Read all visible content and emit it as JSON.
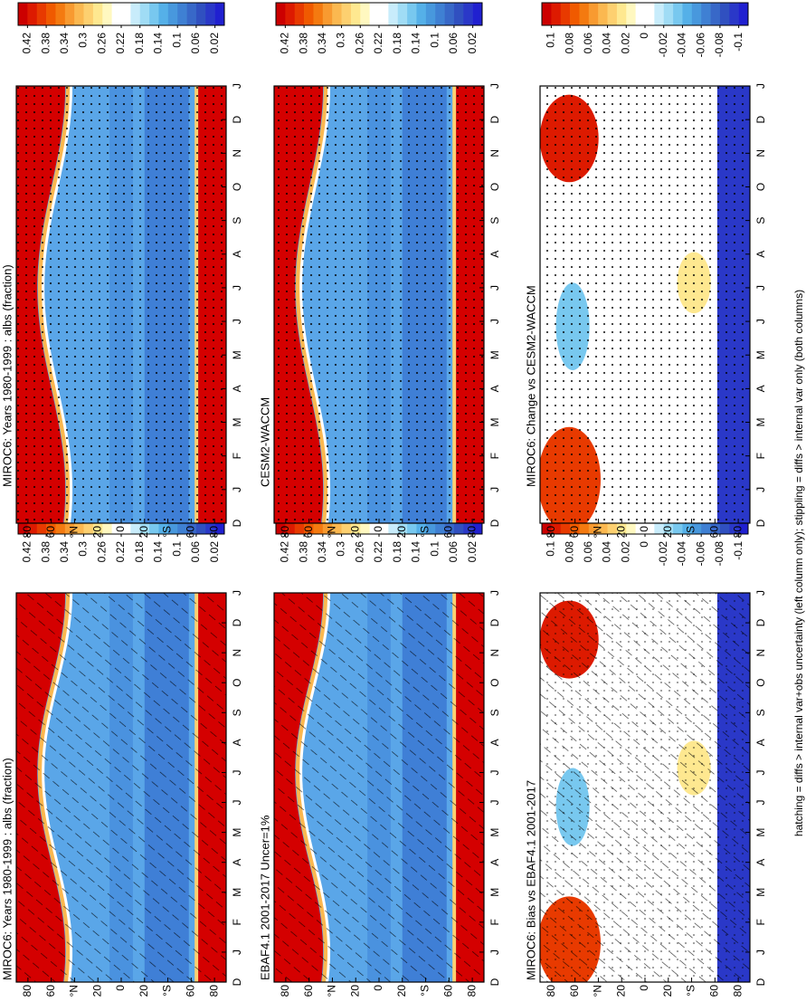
{
  "chart_data": [
    {
      "type": "contour",
      "title": "MIROC6: Years 1980-1999 : albs (fraction)",
      "hatching": true,
      "stippling": false,
      "categories": [
        "D",
        "J",
        "F",
        "M",
        "A",
        "M",
        "J",
        "J",
        "A",
        "S",
        "O",
        "N",
        "D",
        "J"
      ],
      "ylim": [
        -90,
        90
      ],
      "yticks": [
        {
          "value": 80,
          "label": "80"
        },
        {
          "value": 60,
          "label": "60"
        },
        {
          "value": 40,
          "label": "°N"
        },
        {
          "value": 20,
          "label": "20"
        },
        0,
        {
          "value": -20,
          "label": "20"
        },
        {
          "value": -40,
          "label": "°S"
        },
        {
          "value": -60,
          "label": "60"
        },
        {
          "value": -80,
          "label": "80"
        }
      ],
      "colorbar": {
        "lim": [
          0.44,
          0
        ],
        "ticks": [
          0.42,
          0.38,
          0.34,
          0.3,
          0.26,
          0.22,
          0.18,
          0.14,
          0.1,
          0.06,
          0.02
        ],
        "colors": [
          "#cc0000",
          "#dd1a00",
          "#e83a00",
          "#f05a00",
          "#f47a10",
          "#f89a30",
          "#fbb850",
          "#fdd070",
          "#fee890",
          "#fff8c0",
          "#ffffff",
          "#ffffff",
          "#c8ecfb",
          "#a0dcf5",
          "#78c8ef",
          "#55b0e8",
          "#4898dd",
          "#3f80d3",
          "#3868c8",
          "#3050c0",
          "#2a38c8",
          "#2020d0"
        ]
      }
    },
    {
      "type": "contour",
      "title": "MIROC6: Years 1980-1999 : albs (fraction)",
      "hatching": false,
      "stippling": true,
      "categories": [
        "D",
        "J",
        "F",
        "M",
        "A",
        "M",
        "J",
        "J",
        "A",
        "S",
        "O",
        "N",
        "D",
        "J"
      ],
      "ylim": [
        -90,
        90
      ],
      "yticks": [
        {
          "value": 80,
          "label": "80"
        },
        {
          "value": 60,
          "label": "60"
        },
        {
          "value": 40,
          "label": "°N"
        },
        {
          "value": 20,
          "label": "20"
        },
        0,
        {
          "value": -20,
          "label": "20"
        },
        {
          "value": -40,
          "label": "°S"
        },
        {
          "value": -60,
          "label": "60"
        },
        {
          "value": -80,
          "label": "80"
        }
      ],
      "colorbar": {
        "lim": [
          0.44,
          0
        ],
        "ticks": [
          0.42,
          0.38,
          0.34,
          0.3,
          0.26,
          0.22,
          0.18,
          0.14,
          0.1,
          0.06,
          0.02
        ],
        "colors": [
          "#cc0000",
          "#dd1a00",
          "#e83a00",
          "#f05a00",
          "#f47a10",
          "#f89a30",
          "#fbb850",
          "#fdd070",
          "#fee890",
          "#fff8c0",
          "#ffffff",
          "#ffffff",
          "#c8ecfb",
          "#a0dcf5",
          "#78c8ef",
          "#55b0e8",
          "#4898dd",
          "#3f80d3",
          "#3868c8",
          "#3050c0",
          "#2a38c8",
          "#2020d0"
        ]
      }
    },
    {
      "type": "contour",
      "title": "EBAF4.1 2001-2017 Uncer=1%",
      "hatching": true,
      "stippling": false,
      "categories": [
        "D",
        "J",
        "F",
        "M",
        "A",
        "M",
        "J",
        "J",
        "A",
        "S",
        "O",
        "N",
        "D",
        "J"
      ],
      "ylim": [
        -90,
        90
      ],
      "yticks": [
        {
          "value": 80,
          "label": "80"
        },
        {
          "value": 60,
          "label": "60"
        },
        {
          "value": 40,
          "label": "°N"
        },
        {
          "value": 20,
          "label": "20"
        },
        0,
        {
          "value": -20,
          "label": "20"
        },
        {
          "value": -40,
          "label": "°S"
        },
        {
          "value": -60,
          "label": "60"
        },
        {
          "value": -80,
          "label": "80"
        }
      ],
      "colorbar": {
        "lim": [
          0.44,
          0
        ],
        "ticks": [
          0.42,
          0.38,
          0.34,
          0.3,
          0.26,
          0.22,
          0.18,
          0.14,
          0.1,
          0.06,
          0.02
        ],
        "colors": [
          "#cc0000",
          "#dd1a00",
          "#e83a00",
          "#f05a00",
          "#f47a10",
          "#f89a30",
          "#fbb850",
          "#fdd070",
          "#fee890",
          "#fff8c0",
          "#ffffff",
          "#ffffff",
          "#c8ecfb",
          "#a0dcf5",
          "#78c8ef",
          "#55b0e8",
          "#4898dd",
          "#3f80d3",
          "#3868c8",
          "#3050c0",
          "#2a38c8",
          "#2020d0"
        ]
      }
    },
    {
      "type": "contour",
      "title": "CESM2-WACCM",
      "hatching": false,
      "stippling": true,
      "categories": [
        "D",
        "J",
        "F",
        "M",
        "A",
        "M",
        "J",
        "J",
        "A",
        "S",
        "O",
        "N",
        "D",
        "J"
      ],
      "ylim": [
        -90,
        90
      ],
      "yticks": [
        {
          "value": 80,
          "label": "80"
        },
        {
          "value": 60,
          "label": "60"
        },
        {
          "value": 40,
          "label": "°N"
        },
        {
          "value": 20,
          "label": "20"
        },
        0,
        {
          "value": -20,
          "label": "20"
        },
        {
          "value": -40,
          "label": "°S"
        },
        {
          "value": -60,
          "label": "60"
        },
        {
          "value": -80,
          "label": "80"
        }
      ],
      "colorbar": {
        "lim": [
          0.44,
          0
        ],
        "ticks": [
          0.42,
          0.38,
          0.34,
          0.3,
          0.26,
          0.22,
          0.18,
          0.14,
          0.1,
          0.06,
          0.02
        ],
        "colors": [
          "#cc0000",
          "#dd1a00",
          "#e83a00",
          "#f05a00",
          "#f47a10",
          "#f89a30",
          "#fbb850",
          "#fdd070",
          "#fee890",
          "#fff8c0",
          "#ffffff",
          "#ffffff",
          "#c8ecfb",
          "#a0dcf5",
          "#78c8ef",
          "#55b0e8",
          "#4898dd",
          "#3f80d3",
          "#3868c8",
          "#3050c0",
          "#2a38c8",
          "#2020d0"
        ]
      }
    },
    {
      "type": "contour",
      "title": "MIROC6: Bias vs EBAF4.1 2001-2017",
      "hatching": true,
      "stippling": true,
      "categories": [
        "D",
        "J",
        "F",
        "M",
        "A",
        "M",
        "J",
        "J",
        "A",
        "S",
        "O",
        "N",
        "D",
        "J"
      ],
      "ylim": [
        -90,
        90
      ],
      "yticks": [
        {
          "value": 80,
          "label": "80"
        },
        {
          "value": 60,
          "label": "60"
        },
        {
          "value": 40,
          "label": "°N"
        },
        {
          "value": 20,
          "label": "20"
        },
        0,
        {
          "value": -20,
          "label": "20"
        },
        {
          "value": -40,
          "label": "°S"
        },
        {
          "value": -60,
          "label": "60"
        },
        {
          "value": -80,
          "label": "80"
        }
      ],
      "colorbar": {
        "lim": [
          0.11,
          -0.11
        ],
        "ticks": [
          0.1,
          0.08,
          0.06,
          0.04,
          0.02,
          0,
          -0.02,
          -0.04,
          -0.06,
          -0.08,
          -0.1
        ],
        "colors": [
          "#cc0000",
          "#dd1a00",
          "#e83a00",
          "#f05a00",
          "#f47a10",
          "#f89a30",
          "#fbb850",
          "#fdd070",
          "#fee890",
          "#fff8c0",
          "#ffffff",
          "#ffffff",
          "#c8ecfb",
          "#a0dcf5",
          "#78c8ef",
          "#55b0e8",
          "#4898dd",
          "#3f80d3",
          "#3868c8",
          "#3050c0",
          "#2a38c8",
          "#2020d0"
        ]
      }
    },
    {
      "type": "contour",
      "title": "MIROC6: Change vs CESM2-WACCM",
      "hatching": false,
      "stippling": true,
      "categories": [
        "D",
        "J",
        "F",
        "M",
        "A",
        "M",
        "J",
        "J",
        "A",
        "S",
        "O",
        "N",
        "D",
        "J"
      ],
      "ylim": [
        -90,
        90
      ],
      "yticks": [
        {
          "value": 80,
          "label": "80"
        },
        {
          "value": 60,
          "label": "60"
        },
        {
          "value": 40,
          "label": "°N"
        },
        {
          "value": 20,
          "label": "20"
        },
        0,
        {
          "value": -20,
          "label": "20"
        },
        {
          "value": -40,
          "label": "°S"
        },
        {
          "value": -60,
          "label": "60"
        },
        {
          "value": -80,
          "label": "80"
        }
      ],
      "colorbar": {
        "lim": [
          0.11,
          -0.11
        ],
        "ticks": [
          0.1,
          0.08,
          0.06,
          0.04,
          0.02,
          0,
          -0.02,
          -0.04,
          -0.06,
          -0.08,
          -0.1
        ],
        "colors": [
          "#cc0000",
          "#dd1a00",
          "#e83a00",
          "#f05a00",
          "#f47a10",
          "#f89a30",
          "#fbb850",
          "#fdd070",
          "#fee890",
          "#fff8c0",
          "#ffffff",
          "#ffffff",
          "#c8ecfb",
          "#a0dcf5",
          "#78c8ef",
          "#55b0e8",
          "#4898dd",
          "#3f80d3",
          "#3868c8",
          "#3050c0",
          "#2a38c8",
          "#2020d0"
        ]
      }
    }
  ],
  "footer": "hatching = diffs > internal var+obs uncertainty (left column only); stippling = diffs > internal var only (both columns)"
}
